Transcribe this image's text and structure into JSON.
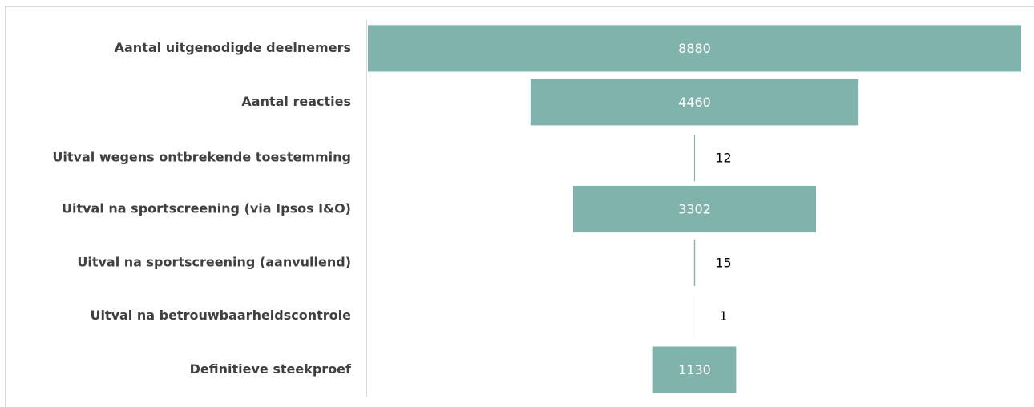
{
  "chart_data": {
    "type": "funnel",
    "categories": [
      "Aantal uitgenodigde deelnemers",
      "Aantal reacties",
      "Uitval wegens ontbrekende toestemming",
      "Uitval na sportscreening (via Ipsos I&O)",
      "Uitval na sportscreening (aanvullend)",
      "Uitval na betrouwbaarheidscontrole",
      "Definitieve steekproef"
    ],
    "values": [
      8880,
      4460,
      12,
      3302,
      15,
      1,
      1130
    ],
    "color": "#80b3ab"
  }
}
